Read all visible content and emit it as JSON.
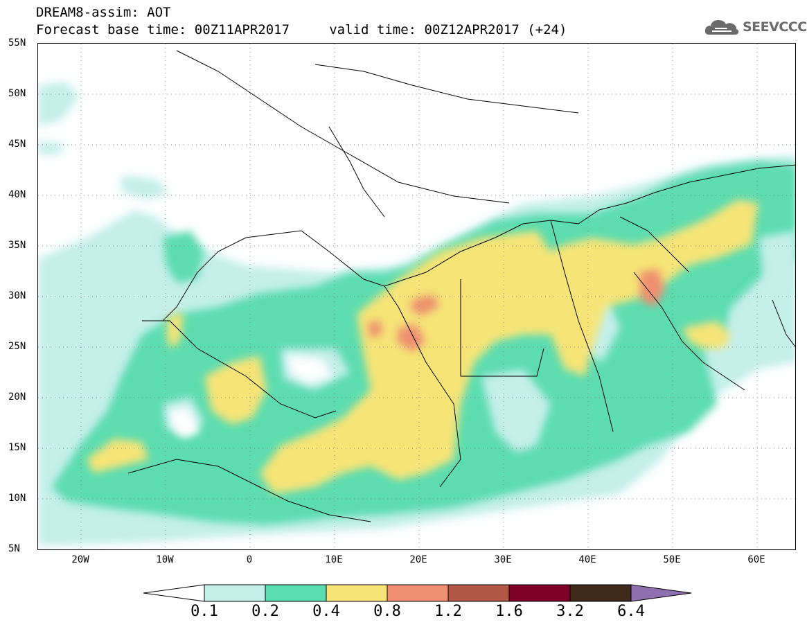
{
  "header": {
    "title_line1": "DREAM8-assim: AOT",
    "title_line2": "Forecast base time: 00Z11APR2017     valid time: 00Z12APR2017 (+24)",
    "logo_text": "SEEVCCC"
  },
  "axes": {
    "lat_labels": [
      "55N",
      "50N",
      "45N",
      "40N",
      "35N",
      "30N",
      "25N",
      "20N",
      "15N",
      "10N",
      "5N"
    ],
    "lon_labels": [
      "20W",
      "10W",
      "0",
      "10E",
      "20E",
      "30E",
      "40E",
      "50E",
      "60E"
    ]
  },
  "colorbar": {
    "labels": [
      "0.1",
      "0.2",
      "0.4",
      "0.8",
      "1.2",
      "1.6",
      "3.2",
      "6.4"
    ],
    "colors": [
      "#ffffff",
      "#c5efe9",
      "#5bdcb0",
      "#f6e477",
      "#ee9070",
      "#b05843",
      "#7d0029",
      "#3f2a1a",
      "#8e6fb0"
    ]
  },
  "colors": {
    "low": "#c5efe9",
    "mid": "#5bdcb0",
    "high": "#f6e477",
    "vhigh": "#ee9070",
    "border": "#000000"
  }
}
